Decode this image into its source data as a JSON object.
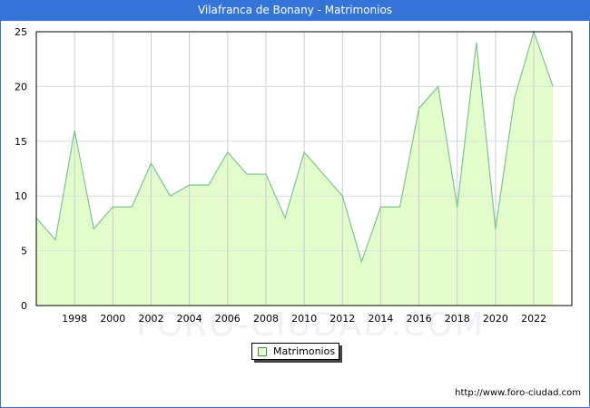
{
  "header": {
    "title": "Vilafranca de Bonany - Matrimonios"
  },
  "legend": {
    "label": "Matrimonios"
  },
  "footer": {
    "source": "http://www.foro-ciudad.com"
  },
  "watermark": "FORO-CIUDAD.COM",
  "colors": {
    "title_bg": "#3474d8",
    "area_fill": "#e3fccc",
    "line": "#7cc490",
    "grid": "#d0d0d0"
  },
  "chart_data": {
    "type": "area",
    "title": "Vilafranca de Bonany - Matrimonios",
    "xlabel": "",
    "ylabel": "",
    "ylim": [
      0,
      25
    ],
    "xlim": [
      1996,
      2023
    ],
    "grid": true,
    "legend_position": "bottom-center",
    "yticks": [
      0,
      5,
      10,
      15,
      20,
      25
    ],
    "xticks": [
      1998,
      2000,
      2002,
      2004,
      2006,
      2008,
      2010,
      2012,
      2014,
      2016,
      2018,
      2020,
      2022
    ],
    "x": [
      1996,
      1997,
      1998,
      1999,
      2000,
      2001,
      2002,
      2003,
      2004,
      2005,
      2006,
      2007,
      2008,
      2009,
      2010,
      2011,
      2012,
      2013,
      2014,
      2015,
      2016,
      2017,
      2018,
      2019,
      2020,
      2021,
      2022,
      2023
    ],
    "series": [
      {
        "name": "Matrimonios",
        "values": [
          8,
          6,
          16,
          7,
          9,
          9,
          13,
          10,
          11,
          11,
          14,
          12,
          12,
          8,
          14,
          12,
          10,
          4,
          9,
          9,
          18,
          20,
          9,
          24,
          7,
          19,
          25,
          20
        ]
      }
    ]
  }
}
